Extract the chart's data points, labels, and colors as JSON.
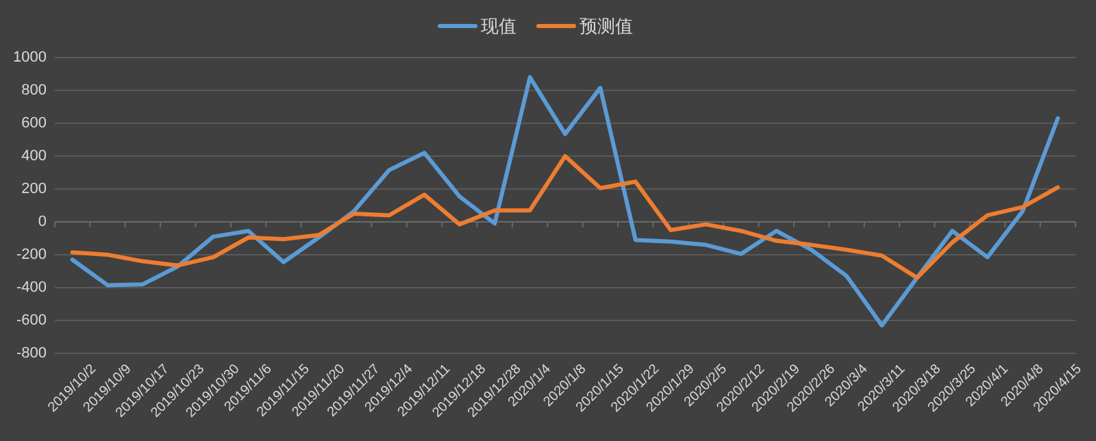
{
  "chart_data": {
    "type": "line",
    "categories": [
      "2019/10/2",
      "2019/10/9",
      "2019/10/17",
      "2019/10/23",
      "2019/10/30",
      "2019/11/6",
      "2019/11/15",
      "2019/11/20",
      "2019/11/27",
      "2019/12/4",
      "2019/12/11",
      "2019/12/18",
      "2019/12/28",
      "2020/1/4",
      "2020/1/8",
      "2020/1/15",
      "2020/1/22",
      "2020/1/29",
      "2020/2/5",
      "2020/2/12",
      "2020/2/19",
      "2020/2/26",
      "2020/3/4",
      "2020/3/11",
      "2020/3/18",
      "2020/3/25",
      "2020/4/1",
      "2020/4/8",
      "2020/4/15"
    ],
    "series": [
      {
        "name": "现值",
        "color": "#5b9bd5",
        "values": [
          -230,
          -385,
          -380,
          -270,
          -90,
          -55,
          -245,
          -95,
          65,
          315,
          420,
          155,
          -10,
          880,
          535,
          815,
          -110,
          -120,
          -140,
          -195,
          -55,
          -170,
          -330,
          -630,
          -340,
          -55,
          -215,
          65,
          630
        ]
      },
      {
        "name": "预测值",
        "color": "#ed7d31",
        "values": [
          -185,
          -200,
          -240,
          -265,
          -215,
          -95,
          -105,
          -80,
          50,
          40,
          165,
          -15,
          70,
          70,
          400,
          205,
          245,
          -50,
          -15,
          -55,
          -115,
          -140,
          -170,
          -205,
          -340,
          -125,
          40,
          90,
          210
        ]
      }
    ],
    "ylim": [
      -800,
      1000
    ],
    "yticks": [
      -800,
      -600,
      -400,
      -200,
      0,
      200,
      400,
      600,
      800,
      1000
    ],
    "grid": "y",
    "legend": "top",
    "line_style": "solid",
    "marker": "none"
  }
}
